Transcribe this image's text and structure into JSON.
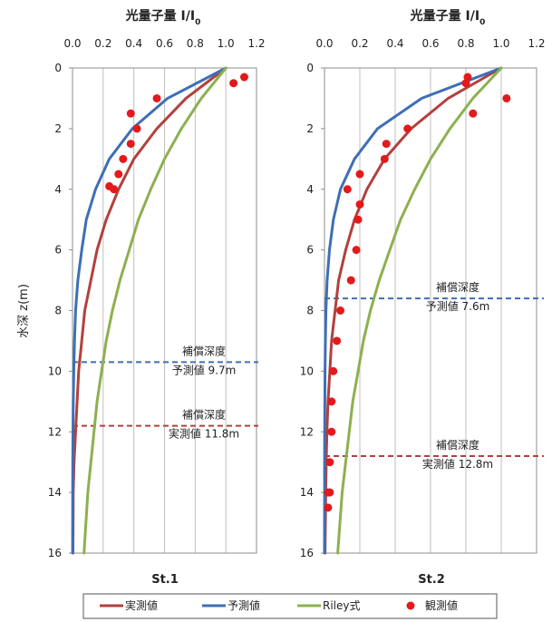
{
  "chart_data": [
    {
      "type": "line",
      "panel_label": "St.1",
      "top_axis_title": "光量子量 I/I",
      "top_axis_subscript": "0",
      "ylabel": "水深 z(m)",
      "xlim": [
        0,
        1.2
      ],
      "ylim": [
        0,
        16
      ],
      "y_inverted": true,
      "x_ticks": [
        "0.0",
        "0.2",
        "0.4",
        "0.6",
        "0.8",
        "1.0",
        "1.2"
      ],
      "y_ticks": [
        "0",
        "2",
        "4",
        "6",
        "8",
        "10",
        "12",
        "14",
        "16"
      ],
      "grid": "vertical",
      "series": [
        {
          "name": "実測値",
          "color": "#b3403c",
          "x": [
            1.0,
            0.74,
            0.55,
            0.4,
            0.3,
            0.22,
            0.16,
            0.12,
            0.08,
            0.06,
            0.04,
            0.03,
            0.02,
            0.01,
            0.005,
            0.003
          ],
          "y": [
            0,
            1,
            2,
            3,
            4,
            5,
            6,
            7,
            8,
            9,
            10,
            11,
            12,
            13,
            14,
            16
          ]
        },
        {
          "name": "予測値",
          "color": "#3d6fb5",
          "x": [
            1.0,
            0.62,
            0.39,
            0.24,
            0.15,
            0.09,
            0.06,
            0.035,
            0.02,
            0.013,
            0.008,
            0.005,
            0.003,
            0.002,
            0.001,
            0.0005
          ],
          "y": [
            0,
            1,
            2,
            3,
            4,
            5,
            6,
            7,
            8,
            9,
            10,
            11,
            12,
            13,
            14,
            16
          ]
        },
        {
          "name": "Riley式",
          "color": "#8db04f",
          "x": [
            1.0,
            0.84,
            0.71,
            0.6,
            0.51,
            0.43,
            0.37,
            0.31,
            0.26,
            0.22,
            0.19,
            0.16,
            0.14,
            0.12,
            0.1,
            0.075
          ],
          "y": [
            0,
            1,
            2,
            3,
            4,
            5,
            6,
            7,
            8,
            9,
            10,
            11,
            12,
            13,
            14,
            16
          ]
        },
        {
          "name": "観測値",
          "color": "#e31a1c",
          "type": "scatter",
          "x": [
            1.12,
            1.05,
            0.55,
            0.38,
            0.42,
            0.38,
            0.33,
            0.3,
            0.27,
            0.24
          ],
          "y": [
            0.3,
            0.5,
            1.0,
            1.5,
            2.0,
            2.5,
            3.0,
            3.5,
            4.0,
            3.9
          ]
        }
      ],
      "reference_lines": [
        {
          "y": 9.7,
          "color": "#3d6fb5",
          "label_top": "補償深度",
          "label_bottom": "予測値  9.7m"
        },
        {
          "y": 11.8,
          "color": "#b3403c",
          "label_top": "補償深度",
          "label_bottom": "実測値  11.8m"
        }
      ]
    },
    {
      "type": "line",
      "panel_label": "St.2",
      "top_axis_title": "光量子量 I/I",
      "top_axis_subscript": "0",
      "xlim": [
        0,
        1.2
      ],
      "ylim": [
        0,
        16
      ],
      "y_inverted": true,
      "x_ticks": [
        "0.0",
        "0.2",
        "0.4",
        "0.6",
        "0.8",
        "1.0",
        "1.2"
      ],
      "y_ticks": [
        "0",
        "2",
        "4",
        "6",
        "8",
        "10",
        "12",
        "14",
        "16"
      ],
      "grid": "vertical",
      "series": [
        {
          "name": "実測値",
          "color": "#b3403c",
          "x": [
            1.0,
            0.7,
            0.49,
            0.34,
            0.24,
            0.17,
            0.12,
            0.08,
            0.06,
            0.04,
            0.03,
            0.02,
            0.014,
            0.01,
            0.007,
            0.003
          ],
          "y": [
            0,
            1,
            2,
            3,
            4,
            5,
            6,
            7,
            8,
            9,
            10,
            11,
            12,
            13,
            14,
            16
          ]
        },
        {
          "name": "予測値",
          "color": "#3d6fb5",
          "x": [
            1.0,
            0.55,
            0.3,
            0.17,
            0.09,
            0.05,
            0.028,
            0.015,
            0.008,
            0.005,
            0.003,
            0.002,
            0.001,
            0.0005,
            0.0003,
            0.0001
          ],
          "y": [
            0,
            1,
            2,
            3,
            4,
            5,
            6,
            7,
            8,
            9,
            10,
            11,
            12,
            13,
            14,
            16
          ]
        },
        {
          "name": "Riley式",
          "color": "#8db04f",
          "x": [
            1.0,
            0.84,
            0.71,
            0.6,
            0.51,
            0.43,
            0.37,
            0.31,
            0.26,
            0.22,
            0.19,
            0.16,
            0.14,
            0.12,
            0.1,
            0.075
          ],
          "y": [
            0,
            1,
            2,
            3,
            4,
            5,
            6,
            7,
            8,
            9,
            10,
            11,
            12,
            13,
            14,
            16
          ]
        },
        {
          "name": "観測値",
          "color": "#e31a1c",
          "type": "scatter",
          "x": [
            0.81,
            0.8,
            1.03,
            0.84,
            0.47,
            0.35,
            0.34,
            0.2,
            0.13,
            0.2,
            0.19,
            0.18,
            0.15,
            0.09,
            0.07,
            0.05,
            0.04,
            0.04,
            0.03,
            0.03,
            0.02,
            0.02
          ],
          "y": [
            0.3,
            0.5,
            1.0,
            1.5,
            2.0,
            2.5,
            3.0,
            3.5,
            4.0,
            4.5,
            5.0,
            6.0,
            7.0,
            8.0,
            9.0,
            10.0,
            11.0,
            12.0,
            13.0,
            14.0,
            14.5,
            14.0
          ]
        }
      ],
      "reference_lines": [
        {
          "y": 7.6,
          "color": "#3d6fb5",
          "label_top": "補償深度",
          "label_bottom": "予測値  7.6m"
        },
        {
          "y": 12.8,
          "color": "#b3403c",
          "label_top": "補償深度",
          "label_bottom": "実測値  12.8m"
        }
      ]
    }
  ],
  "legend": {
    "items": [
      {
        "label": "実測値",
        "kind": "line",
        "color": "#b3403c"
      },
      {
        "label": "予測値",
        "kind": "line",
        "color": "#3d6fb5"
      },
      {
        "label": "Riley式",
        "kind": "line",
        "color": "#8db04f"
      },
      {
        "label": "観測値",
        "kind": "dot",
        "color": "#e31a1c"
      }
    ]
  }
}
